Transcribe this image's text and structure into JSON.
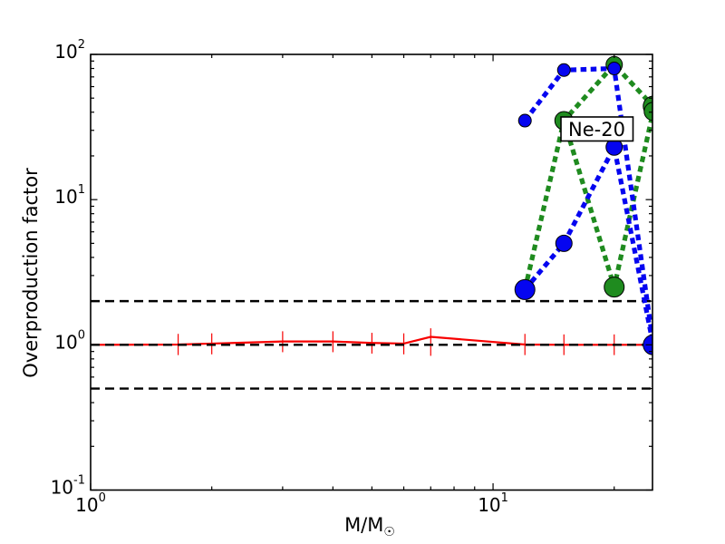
{
  "chart_data": {
    "type": "line",
    "annotation_label": "Ne-20",
    "xlabel_base": "M/M",
    "xlabel_subscript": "☉",
    "ylabel": "Overproduction factor",
    "xscale": "log",
    "yscale": "log",
    "xlim": [
      1,
      24.9
    ],
    "ylim": [
      0.1,
      100
    ],
    "grid": false,
    "legend": "none",
    "x_major_ticks": [
      1,
      10
    ],
    "x_major_tick_labels": [
      {
        "base": "10",
        "exp": "0"
      },
      {
        "base": "10",
        "exp": "1"
      }
    ],
    "x_minor_ticks": [
      2,
      3,
      4,
      5,
      6,
      7,
      8,
      9,
      20
    ],
    "y_major_ticks": [
      100,
      10,
      1,
      0.1
    ],
    "y_major_tick_labels": [
      {
        "base": "10",
        "exp": "2"
      },
      {
        "base": "10",
        "exp": "1"
      },
      {
        "base": "10",
        "exp": "0"
      },
      {
        "base": "10",
        "exp": "-1"
      }
    ],
    "reference_hlines": {
      "values": [
        2,
        1,
        0.5
      ],
      "color": "#000000",
      "style": "dashed"
    },
    "series": [
      {
        "name": "red-solid",
        "color": "#f70000",
        "style": "solid",
        "linewidth": 2.2,
        "x": [
          1,
          1.65,
          2,
          3,
          4,
          5,
          6,
          7,
          12,
          15,
          20,
          25
        ],
        "y": [
          1.0,
          1.005,
          1.02,
          1.055,
          1.055,
          1.03,
          1.02,
          1.135,
          1.005,
          1.0,
          1.0,
          1.0
        ],
        "marker_radii": [
          0,
          0,
          0,
          0,
          0,
          0,
          0,
          0,
          0,
          0,
          0,
          0
        ],
        "yerr": [
          {
            "x": 1.65,
            "lo": 0.85,
            "hi": 1.19
          },
          {
            "x": 2,
            "lo": 0.86,
            "hi": 1.2
          },
          {
            "x": 3,
            "lo": 0.89,
            "hi": 1.24
          },
          {
            "x": 4,
            "lo": 0.89,
            "hi": 1.24
          },
          {
            "x": 5,
            "lo": 0.87,
            "hi": 1.21
          },
          {
            "x": 6,
            "lo": 0.86,
            "hi": 1.2
          },
          {
            "x": 7,
            "lo": 0.84,
            "hi": 1.3
          },
          {
            "x": 12,
            "lo": 0.85,
            "hi": 1.19
          },
          {
            "x": 15,
            "lo": 0.85,
            "hi": 1.18
          },
          {
            "x": 20,
            "lo": 0.85,
            "hi": 1.18
          }
        ]
      },
      {
        "name": "green-set-1",
        "color": "#1f8b1f",
        "style": "dashed",
        "linewidth": 5.2,
        "x": [
          12,
          15,
          20,
          25
        ],
        "y": [
          2.4,
          35,
          85,
          44
        ],
        "marker_radii": [
          0,
          10,
          9,
          11
        ]
      },
      {
        "name": "green-set-2",
        "color": "#1f8b1f",
        "style": "dashed",
        "linewidth": 5.2,
        "x": [
          15,
          20,
          25
        ],
        "y": [
          35,
          2.5,
          40.5
        ],
        "marker_radii": [
          0,
          11,
          10
        ]
      },
      {
        "name": "blue-set-1",
        "color": "#0505f0",
        "style": "dashed",
        "linewidth": 5.2,
        "x": [
          12,
          15,
          20,
          25
        ],
        "y": [
          35,
          78,
          80,
          1.02
        ],
        "marker_radii": [
          7,
          7,
          7,
          0
        ]
      },
      {
        "name": "blue-set-2",
        "color": "#0505f0",
        "style": "dashed",
        "linewidth": 5.2,
        "x": [
          12,
          15,
          20,
          25
        ],
        "y": [
          2.4,
          5,
          23,
          1.0
        ],
        "marker_radii": [
          11,
          9,
          9,
          11
        ]
      }
    ]
  }
}
